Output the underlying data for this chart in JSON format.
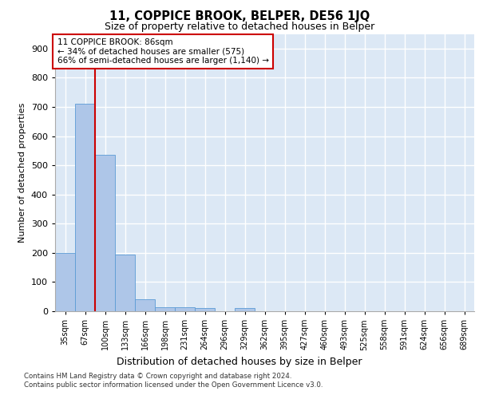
{
  "title": "11, COPPICE BROOK, BELPER, DE56 1JQ",
  "subtitle": "Size of property relative to detached houses in Belper",
  "xlabel": "Distribution of detached houses by size in Belper",
  "ylabel": "Number of detached properties",
  "categories": [
    "35sqm",
    "67sqm",
    "100sqm",
    "133sqm",
    "166sqm",
    "198sqm",
    "231sqm",
    "264sqm",
    "296sqm",
    "329sqm",
    "362sqm",
    "395sqm",
    "427sqm",
    "460sqm",
    "493sqm",
    "525sqm",
    "558sqm",
    "591sqm",
    "624sqm",
    "656sqm",
    "689sqm"
  ],
  "values": [
    200,
    710,
    535,
    193,
    40,
    15,
    15,
    10,
    0,
    10,
    0,
    0,
    0,
    0,
    0,
    0,
    0,
    0,
    0,
    0,
    0
  ],
  "bar_color": "#aec6e8",
  "bar_edge_color": "#5b9bd5",
  "ylim": [
    0,
    950
  ],
  "yticks": [
    0,
    100,
    200,
    300,
    400,
    500,
    600,
    700,
    800,
    900
  ],
  "property_line_x": 1.5,
  "property_line_color": "#cc0000",
  "annotation_text": "11 COPPICE BROOK: 86sqm\n← 34% of detached houses are smaller (575)\n66% of semi-detached houses are larger (1,140) →",
  "annotation_box_color": "#ffffff",
  "annotation_box_edge": "#cc0000",
  "footer": "Contains HM Land Registry data © Crown copyright and database right 2024.\nContains public sector information licensed under the Open Government Licence v3.0.",
  "background_color": "#dce8f5",
  "grid_color": "#ffffff"
}
